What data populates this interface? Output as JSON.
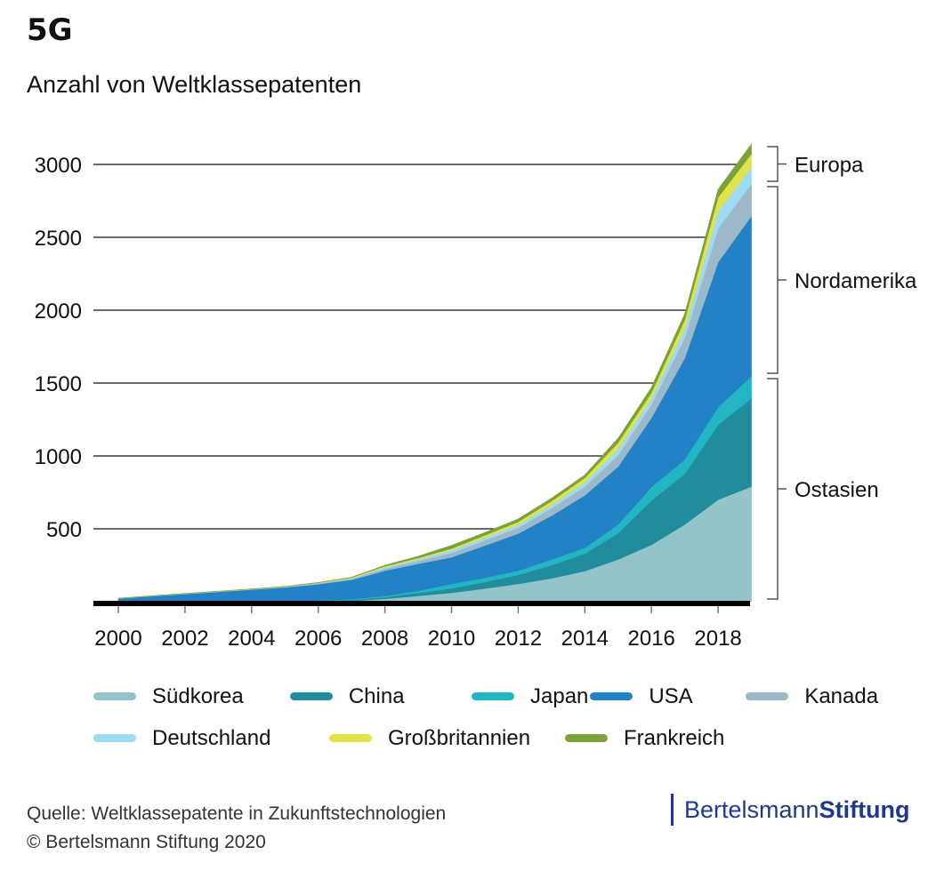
{
  "title": "5G",
  "subtitle": "Anzahl von Weltklassepatenten",
  "chart_data": {
    "type": "area",
    "stacked": true,
    "x": [
      2000,
      2001,
      2002,
      2003,
      2004,
      2005,
      2006,
      2007,
      2008,
      2009,
      2010,
      2011,
      2012,
      2013,
      2014,
      2015,
      2016,
      2017,
      2018,
      2019
    ],
    "xticks": [
      2000,
      2002,
      2004,
      2006,
      2008,
      2010,
      2012,
      2014,
      2016,
      2018
    ],
    "yticks": [
      500,
      1000,
      1500,
      2000,
      2500,
      3000
    ],
    "ylim": [
      0,
      3200
    ],
    "grid": "horizontal",
    "legend_placement": "bottom",
    "series": [
      {
        "name": "Südkorea",
        "color": "#93c4ca",
        "values": [
          0,
          0,
          0,
          0,
          0,
          0,
          0,
          5,
          20,
          40,
          61,
          90,
          122,
          160,
          210,
          290,
          390,
          530,
          700,
          790
        ]
      },
      {
        "name": "China",
        "color": "#218c9c",
        "values": [
          1,
          1,
          2,
          2,
          3,
          3,
          4,
          7,
          10,
          20,
          30,
          45,
          61,
          90,
          120,
          180,
          305,
          348,
          513,
          606
        ]
      },
      {
        "name": "Japan",
        "color": "#22b5c4",
        "values": [
          2,
          3,
          3,
          4,
          4,
          5,
          4,
          6,
          10,
          15,
          31,
          30,
          30,
          40,
          40,
          60,
          92,
          98,
          122,
          153
        ]
      },
      {
        "name": "USA",
        "color": "#2381c6",
        "values": [
          19,
          34,
          48,
          62,
          76,
          90,
          112,
          132,
          173,
          185,
          183,
          220,
          254,
          300,
          360,
          397,
          475,
          695,
          994,
          1097
        ]
      },
      {
        "name": "Kanada",
        "color": "#9db8c9",
        "values": [
          1,
          1,
          1,
          1,
          2,
          3,
          5,
          8,
          14,
          20,
          30,
          35,
          41,
          50,
          60,
          79,
          91,
          140,
          232,
          220
        ]
      },
      {
        "name": "Deutschland",
        "color": "#9ddaf5",
        "values": [
          0,
          1,
          1,
          1,
          1,
          2,
          3,
          4,
          8,
          12,
          20,
          20,
          20,
          25,
          30,
          43,
          43,
          61,
          116,
          116
        ]
      },
      {
        "name": "Großbritannien",
        "color": "#e2e24a",
        "values": [
          1,
          0,
          1,
          1,
          1,
          1,
          2,
          4,
          8,
          8,
          10,
          15,
          20,
          25,
          30,
          42,
          37,
          61,
          97,
          91
        ]
      },
      {
        "name": "Frankreich",
        "color": "#7aa23d",
        "values": [
          0,
          1,
          1,
          1,
          1,
          1,
          2,
          2,
          7,
          12,
          21,
          20,
          20,
          20,
          20,
          31,
          37,
          43,
          55,
          67
        ]
      }
    ],
    "annotations": [
      {
        "label": "Europa",
        "series": [
          "Deutschland",
          "Großbritannien",
          "Frankreich"
        ]
      },
      {
        "label": "Nordamerika",
        "series": [
          "USA",
          "Kanada"
        ]
      },
      {
        "label": "Ostasien",
        "series": [
          "Südkorea",
          "China",
          "Japan"
        ]
      }
    ]
  },
  "footer": {
    "source": "Quelle: Weltklassepatente in Zukunftstechnologien",
    "copyright": "© Bertelsmann Stiftung 2020"
  },
  "logo": {
    "part1": "Bertelsmann",
    "part2": "Stiftung"
  }
}
